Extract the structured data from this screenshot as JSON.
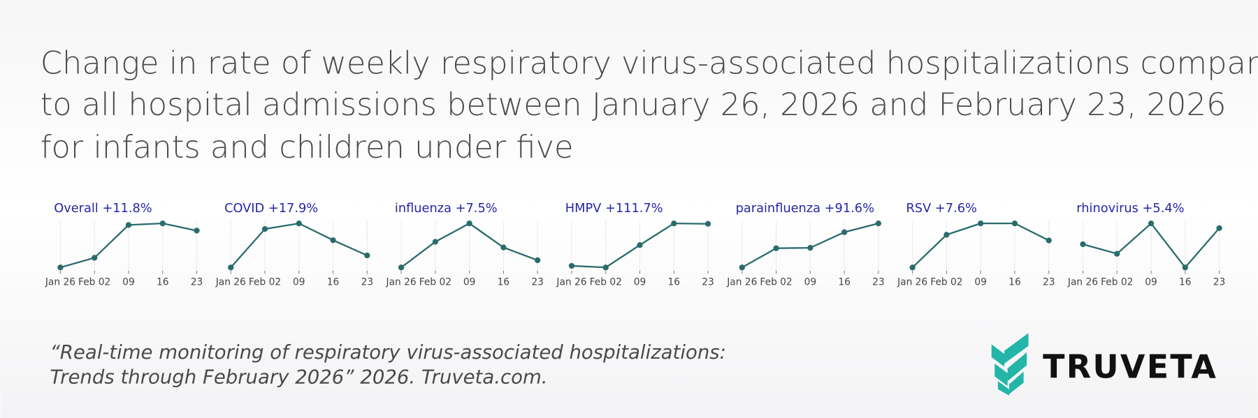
{
  "title_lines": [
    "Change in rate of weekly respiratory virus-associated hospitalizations compared",
    "to all hospital admissions between January 26, 2026 and February 23, 2026",
    "for infants and children under five"
  ],
  "citation_lines": [
    "“Real-time monitoring of respiratory virus-associated hospitalizations:",
    "Trends through February 2026” 2026. Truveta.com."
  ],
  "logo": "TRUVETA",
  "chart_data": [
    {
      "type": "line",
      "title": "Overall +11.8%",
      "categories": [
        "Jan 26",
        "Feb 02",
        "09",
        "16",
        "23"
      ],
      "values": [
        100,
        103.1,
        113.6,
        114.1,
        111.8
      ],
      "ylim": [
        100,
        114.1
      ],
      "color": "#2a6b6b",
      "grid": true
    },
    {
      "type": "line",
      "title": "COVID +17.9%",
      "categories": [
        "Jan 26",
        "Feb 02",
        "09",
        "16",
        "23"
      ],
      "values": [
        100,
        157.3,
        165.6,
        140.6,
        117.9
      ],
      "ylim": [
        100,
        165.6
      ],
      "color": "#2a6b6b",
      "grid": true
    },
    {
      "type": "line",
      "title": "influenza +7.5%",
      "categories": [
        "Jan 26",
        "Feb 02",
        "09",
        "16",
        "23"
      ],
      "values": [
        100,
        126.7,
        145.8,
        120.8,
        107.5
      ],
      "ylim": [
        100,
        145.8
      ],
      "color": "#2a6b6b",
      "grid": true
    },
    {
      "type": "line",
      "title": "HMPV +111.7%",
      "categories": [
        "Jan 26",
        "Feb 02",
        "09",
        "16",
        "23"
      ],
      "values": [
        100,
        95.7,
        155.3,
        212.8,
        211.7
      ],
      "ylim": [
        95.7,
        212.8
      ],
      "color": "#2a6b6b",
      "grid": true
    },
    {
      "type": "line",
      "title": "parainfluenza +91.6%",
      "categories": [
        "Jan 26",
        "Feb 02",
        "09",
        "16",
        "23"
      ],
      "values": [
        100,
        140,
        140.8,
        173.3,
        191.6
      ],
      "ylim": [
        100,
        191.6
      ],
      "color": "#2a6b6b",
      "grid": true
    },
    {
      "type": "line",
      "title": "RSV +7.6%",
      "categories": [
        "Jan 26",
        "Feb 02",
        "09",
        "16",
        "23"
      ],
      "values": [
        100,
        109.2,
        112.4,
        112.4,
        107.6
      ],
      "ylim": [
        100,
        112.4
      ],
      "color": "#2a6b6b",
      "grid": true
    },
    {
      "type": "line",
      "title": "rhinovirus +5.4%",
      "categories": [
        "Jan 26",
        "Feb 02",
        "09",
        "16",
        "23"
      ],
      "values": [
        100,
        96.8,
        107,
        92.2,
        105.4
      ],
      "ylim": [
        92.2,
        107
      ],
      "color": "#2a6b6b",
      "grid": true
    }
  ]
}
